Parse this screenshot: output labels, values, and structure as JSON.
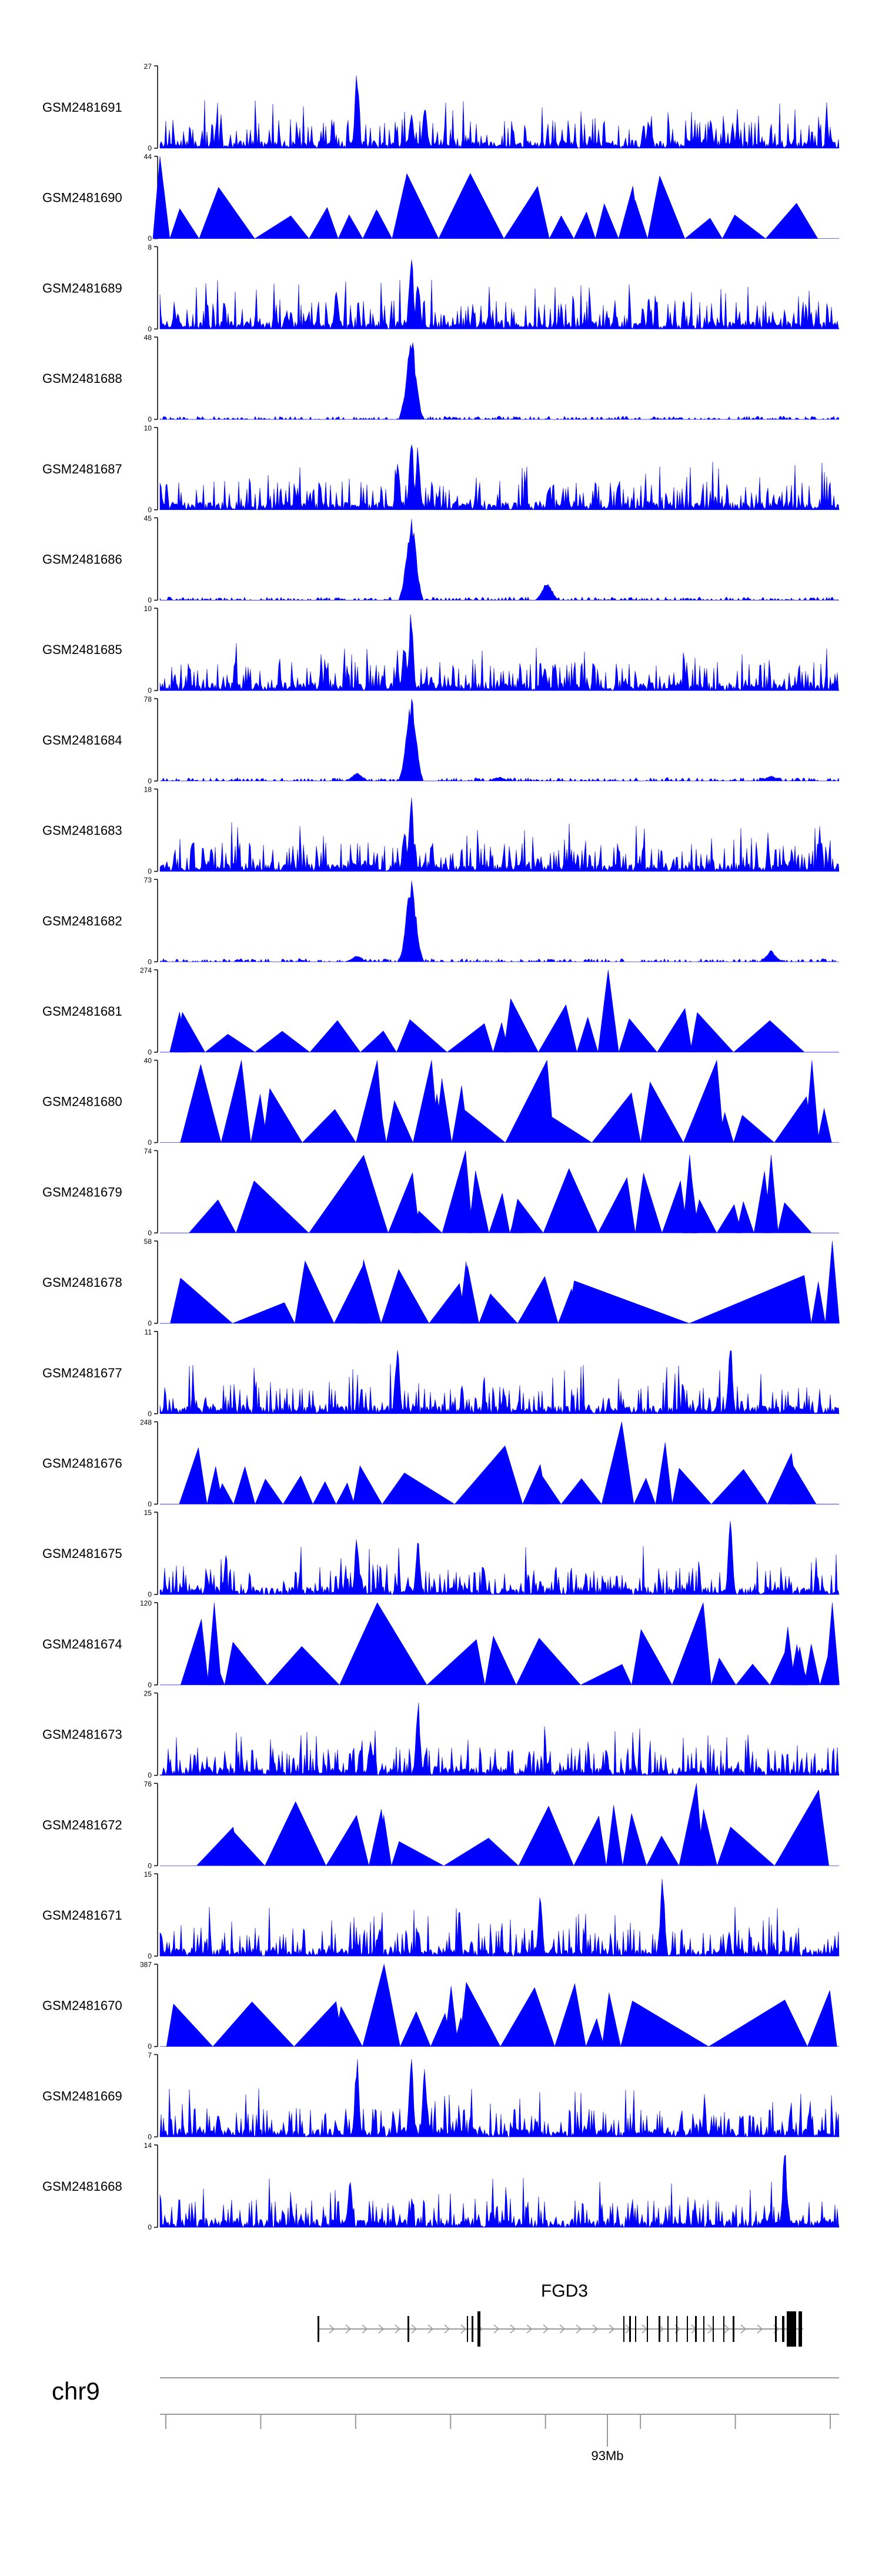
{
  "colors": {
    "signal": "#0000ff",
    "axis": "#000000",
    "track": "#999999"
  },
  "chart_data": {
    "type": "area",
    "title": "",
    "chromosome": "chr9",
    "x_axis": {
      "tick_label": "93Mb",
      "ticks": 8,
      "labeled_tick_index": 4
    },
    "gene": {
      "name": "FGD3",
      "strand": "+"
    },
    "ymin": 0,
    "series": [
      {
        "name": "GSM2481691",
        "ymax": 27,
        "style": "dense",
        "peaks": [
          [
            0.29,
            26
          ],
          [
            0.37,
            12
          ],
          [
            0.39,
            15
          ],
          [
            0.72,
            9
          ]
        ]
      },
      {
        "name": "GSM2481690",
        "ymax": 44,
        "style": "sparse",
        "peaks": [
          [
            0.0,
            44
          ],
          [
            0.32,
            15
          ],
          [
            0.81,
            11
          ]
        ]
      },
      {
        "name": "GSM2481689",
        "ymax": 8,
        "style": "dense",
        "peaks": [
          [
            0.37,
            8
          ],
          [
            0.38,
            5
          ],
          [
            0.26,
            4
          ]
        ]
      },
      {
        "name": "GSM2481688",
        "ymax": 48,
        "style": "spike",
        "peaks": [
          [
            0.37,
            48
          ]
        ]
      },
      {
        "name": "GSM2481687",
        "ymax": 10,
        "style": "dense",
        "peaks": [
          [
            0.37,
            10
          ],
          [
            0.38,
            8
          ],
          [
            0.35,
            6
          ]
        ]
      },
      {
        "name": "GSM2481686",
        "ymax": 45,
        "style": "spike",
        "peaks": [
          [
            0.37,
            45
          ],
          [
            0.57,
            10
          ]
        ]
      },
      {
        "name": "GSM2481685",
        "ymax": 10,
        "style": "dense",
        "peaks": [
          [
            0.37,
            10
          ],
          [
            0.36,
            6
          ]
        ]
      },
      {
        "name": "GSM2481684",
        "ymax": 78,
        "style": "spike",
        "peaks": [
          [
            0.37,
            78
          ],
          [
            0.29,
            8
          ],
          [
            0.5,
            4
          ],
          [
            0.9,
            5
          ]
        ]
      },
      {
        "name": "GSM2481683",
        "ymax": 18,
        "style": "dense",
        "peaks": [
          [
            0.37,
            18
          ],
          [
            0.36,
            10
          ]
        ]
      },
      {
        "name": "GSM2481682",
        "ymax": 73,
        "style": "spike",
        "peaks": [
          [
            0.37,
            73
          ],
          [
            0.29,
            6
          ],
          [
            0.9,
            10
          ]
        ]
      },
      {
        "name": "GSM2481681",
        "ymax": 274,
        "style": "sparse",
        "peaks": [
          [
            0.66,
            274
          ],
          [
            0.03,
            120
          ],
          [
            0.1,
            60
          ],
          [
            0.18,
            70
          ]
        ]
      },
      {
        "name": "GSM2481680",
        "ymax": 40,
        "style": "sparse",
        "peaks": [
          [
            0.06,
            38
          ],
          [
            0.12,
            40
          ],
          [
            0.32,
            40
          ],
          [
            0.4,
            40
          ],
          [
            0.57,
            40
          ],
          [
            0.82,
            40
          ],
          [
            0.96,
            40
          ]
        ]
      },
      {
        "name": "GSM2481679",
        "ymax": 74,
        "style": "sparse",
        "peaks": [
          [
            0.45,
            74
          ],
          [
            0.3,
            70
          ],
          [
            0.78,
            70
          ],
          [
            0.9,
            70
          ]
        ]
      },
      {
        "name": "GSM2481678",
        "ymax": 58,
        "style": "sparse",
        "peaks": [
          [
            0.99,
            58
          ],
          [
            0.61,
            30
          ]
        ]
      },
      {
        "name": "GSM2481677",
        "ymax": 11,
        "style": "dense",
        "peaks": [
          [
            0.84,
            11
          ],
          [
            0.35,
            9
          ]
        ]
      },
      {
        "name": "GSM2481676",
        "ymax": 248,
        "style": "sparse",
        "peaks": [
          [
            0.68,
            248
          ],
          [
            0.56,
            120
          ]
        ]
      },
      {
        "name": "GSM2481675",
        "ymax": 15,
        "style": "dense",
        "peaks": [
          [
            0.84,
            15
          ],
          [
            0.29,
            11
          ],
          [
            0.38,
            10
          ]
        ]
      },
      {
        "name": "GSM2481674",
        "ymax": 120,
        "style": "sparse",
        "peaks": [
          [
            0.08,
            120
          ],
          [
            0.32,
            120
          ],
          [
            0.8,
            120
          ],
          [
            0.99,
            120
          ]
        ]
      },
      {
        "name": "GSM2481673",
        "ymax": 25,
        "style": "dense",
        "peaks": [
          [
            0.38,
            24
          ],
          [
            0.31,
            12
          ]
        ]
      },
      {
        "name": "GSM2481672",
        "ymax": 76,
        "style": "sparse",
        "peaks": [
          [
            0.79,
            76
          ],
          [
            0.97,
            70
          ]
        ]
      },
      {
        "name": "GSM2481671",
        "ymax": 15,
        "style": "dense",
        "peaks": [
          [
            0.74,
            15
          ],
          [
            0.56,
            11
          ]
        ]
      },
      {
        "name": "GSM2481670",
        "ymax": 387,
        "style": "sparse",
        "peaks": [
          [
            0.33,
            387
          ],
          [
            0.02,
            200
          ]
        ]
      },
      {
        "name": "GSM2481669",
        "ymax": 7,
        "style": "dense",
        "peaks": [
          [
            0.29,
            7
          ],
          [
            0.37,
            7
          ],
          [
            0.39,
            6
          ]
        ]
      },
      {
        "name": "GSM2481668",
        "ymax": 14,
        "style": "dense",
        "peaks": [
          [
            0.92,
            14
          ],
          [
            0.28,
            8
          ]
        ]
      }
    ]
  }
}
